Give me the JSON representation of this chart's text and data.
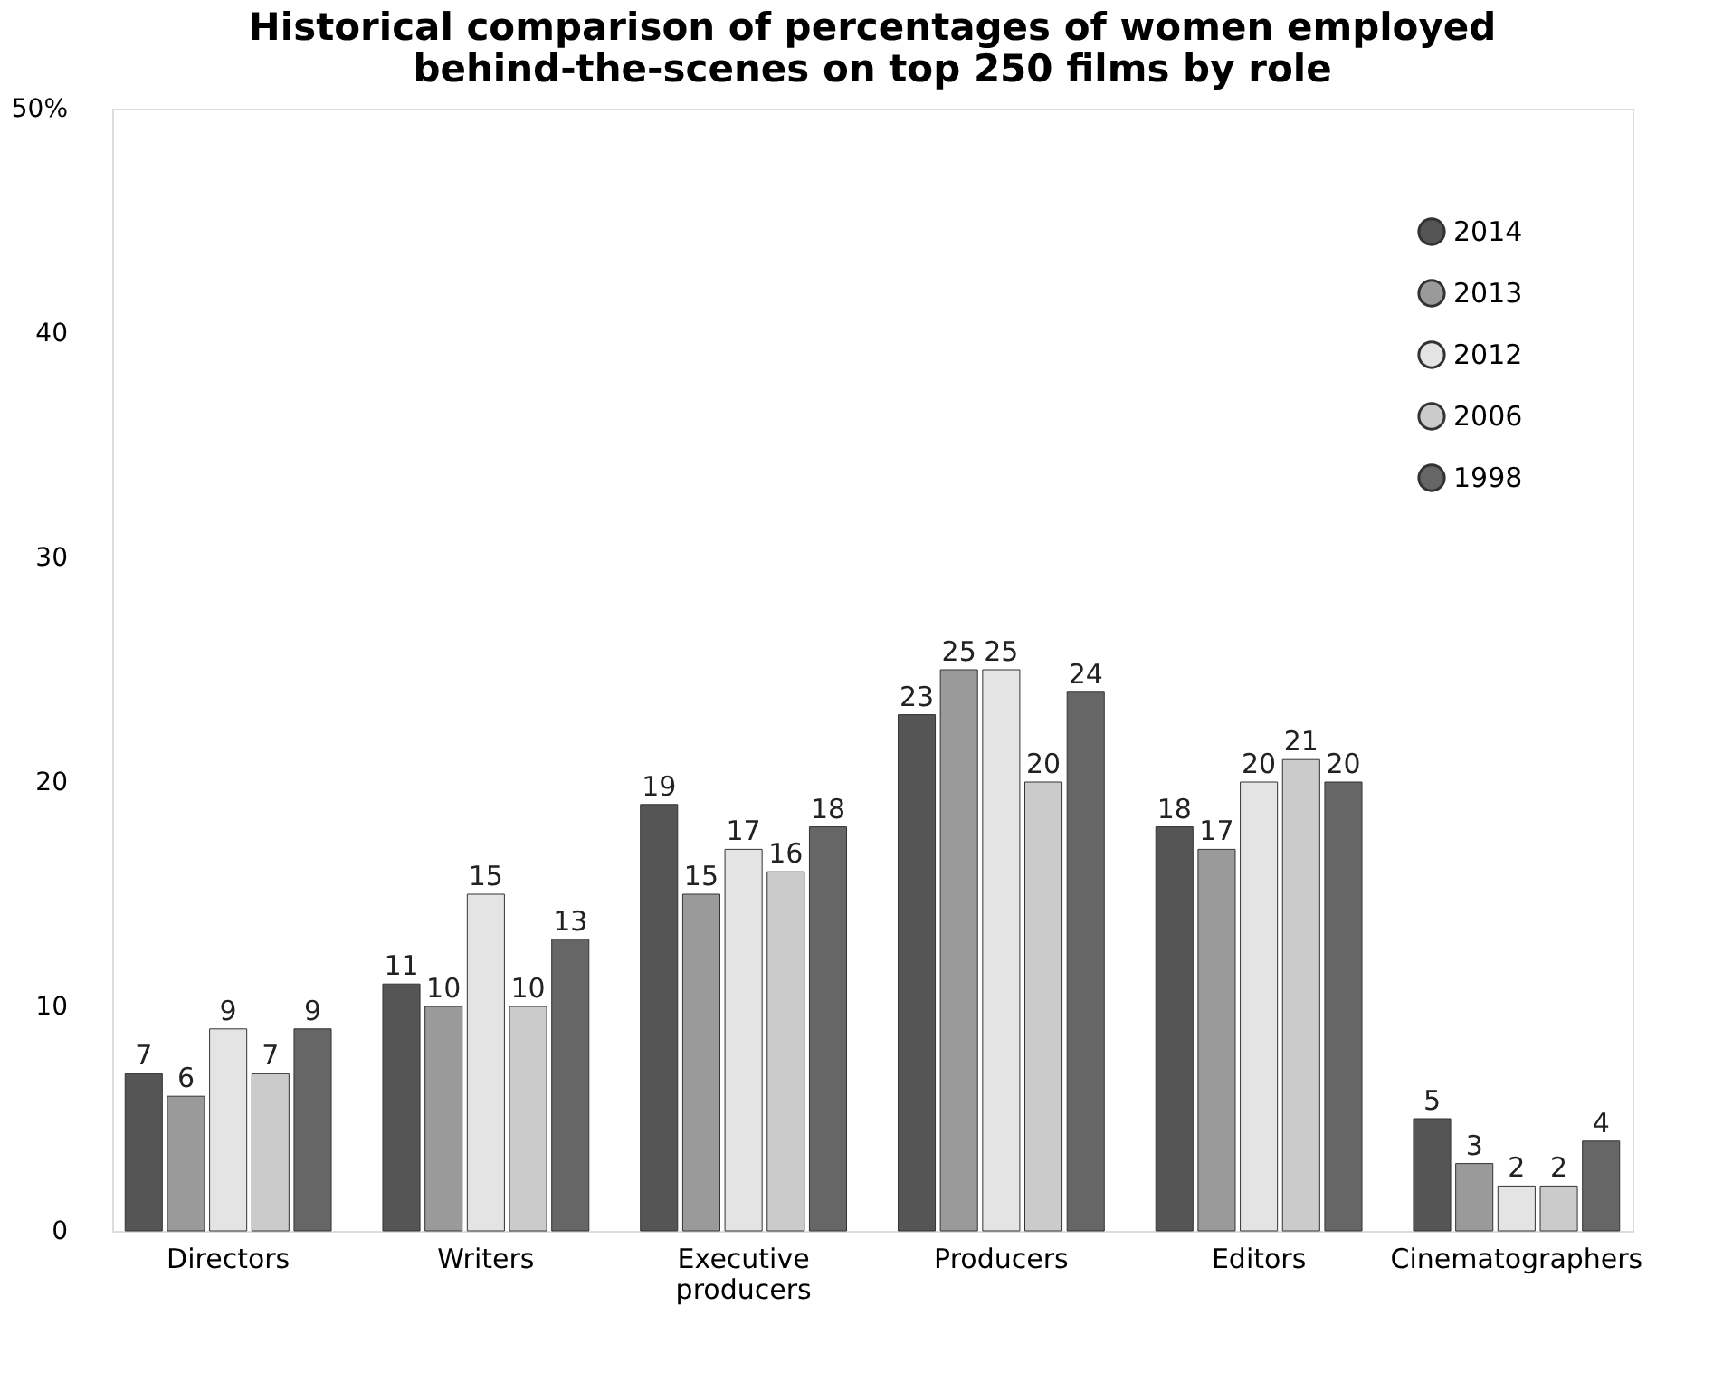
{
  "chart_data": {
    "type": "bar",
    "title": [
      "Historical comparison of percentages of women employed",
      "behind-the-scenes on top 250 films by role"
    ],
    "categories": [
      "Directors",
      "Writers",
      "Executive producers",
      "Producers",
      "Editors",
      "Cinematographers"
    ],
    "series": [
      {
        "name": "2014",
        "color": "#555555",
        "values": [
          7,
          11,
          19,
          23,
          18,
          5
        ]
      },
      {
        "name": "2013",
        "color": "#9a9a9a",
        "values": [
          6,
          10,
          15,
          25,
          17,
          3
        ]
      },
      {
        "name": "2012",
        "color": "#e4e4e4",
        "values": [
          9,
          15,
          17,
          25,
          20,
          2
        ]
      },
      {
        "name": "2006",
        "color": "#cbcbcb",
        "values": [
          7,
          10,
          16,
          20,
          21,
          2
        ]
      },
      {
        "name": "1998",
        "color": "#666666",
        "values": [
          9,
          13,
          18,
          24,
          20,
          4
        ]
      }
    ],
    "ylim": [
      0,
      50
    ],
    "yticks": [
      0,
      10,
      20,
      30,
      40,
      {
        "value": 50,
        "label": "50%"
      }
    ],
    "data_labels": true,
    "legend": "top right",
    "grid": false
  }
}
